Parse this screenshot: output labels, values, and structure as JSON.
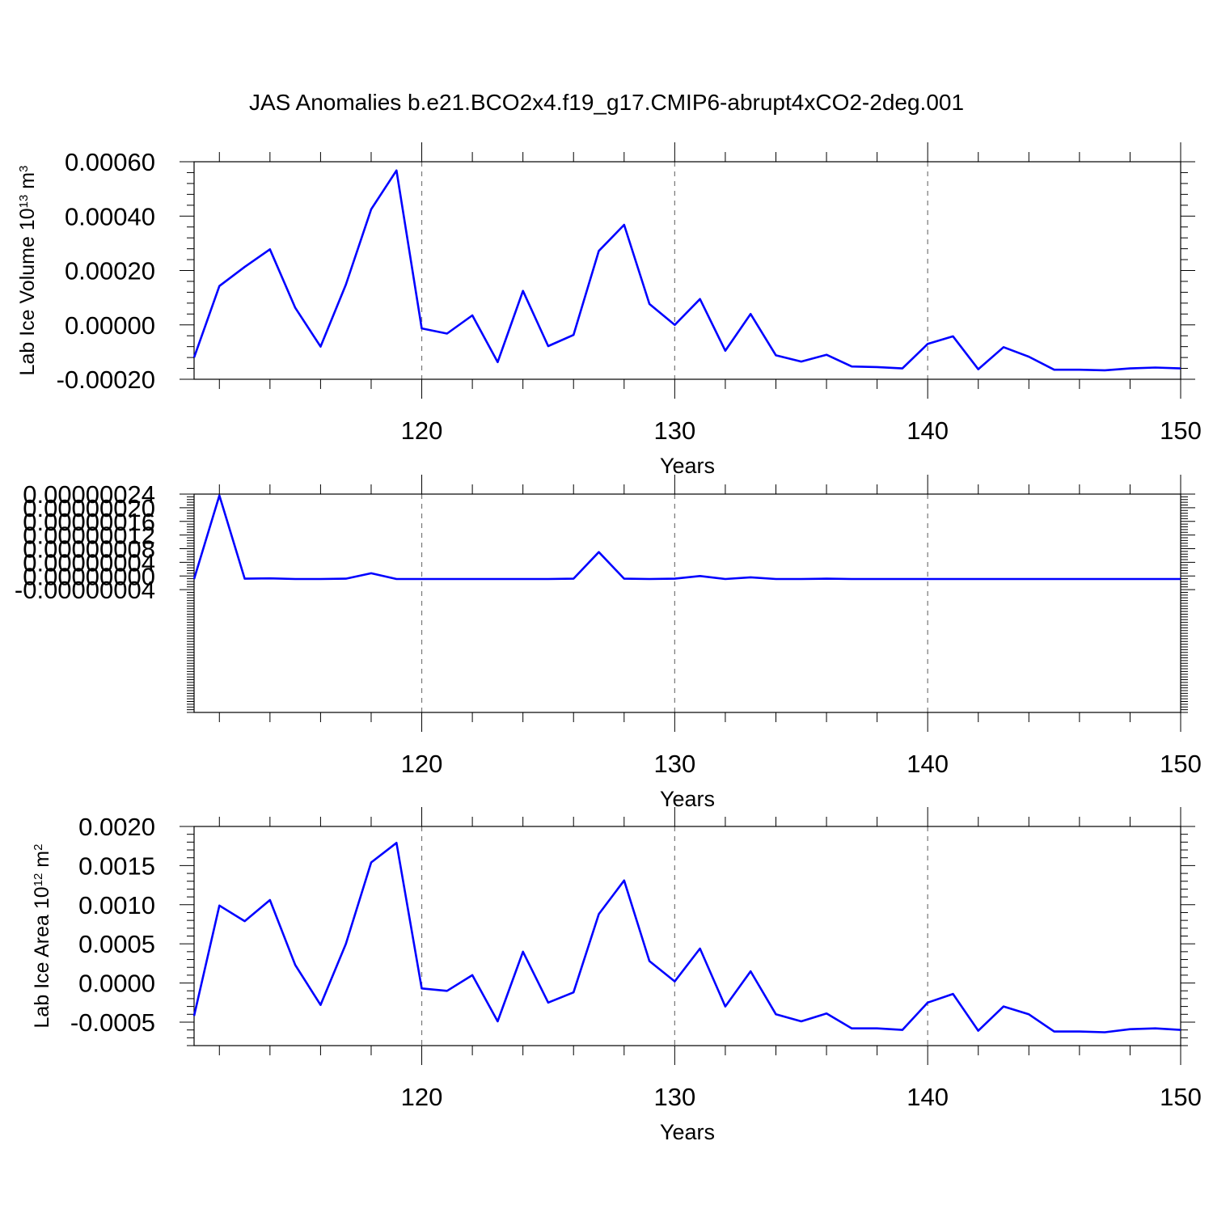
{
  "title": "JAS Anomalies b.e21.BCO2x4.f19_g17.CMIP6-abrupt4xCO2-2deg.001",
  "colors": {
    "line": "#0000ff",
    "grid": "#777777",
    "axis": "#000000"
  },
  "chart_data": [
    {
      "type": "line",
      "xlabel": "Years",
      "ylabel": {
        "prefix": "Lab Ice Volume 10",
        "exponent": "13",
        "unit": " m",
        "unit_exponent": "3"
      },
      "xlim": [
        111,
        150
      ],
      "ylim": [
        -0.0002,
        0.0006
      ],
      "x_major_ticks": [
        120,
        130,
        140,
        150
      ],
      "x_tick_labels": [
        "120",
        "130",
        "140",
        "150"
      ],
      "y_major_ticks": [
        -0.0002,
        0,
        0.0002,
        0.0004,
        0.0006
      ],
      "y_tick_labels": [
        "-0.00020",
        "0.00000",
        "0.00020",
        "0.00040",
        "0.00060"
      ],
      "grid": "vertical dashed at major x ticks",
      "x": [
        111,
        112,
        113,
        114,
        115,
        116,
        117,
        118,
        119,
        120,
        121,
        122,
        123,
        124,
        125,
        126,
        127,
        128,
        129,
        130,
        131,
        132,
        133,
        134,
        135,
        136,
        137,
        138,
        139,
        140,
        141,
        142,
        143,
        144,
        145,
        146,
        147,
        148,
        149,
        150
      ],
      "series": [
        {
          "values": [
            -0.00012,
            0.000143,
            0.000213,
            0.000278,
            6.3e-05,
            -8e-05,
            0.000148,
            0.000425,
            0.000568,
            -1.3e-05,
            -3.2e-05,
            3.5e-05,
            -0.000137,
            0.000125,
            -7.8e-05,
            -3.7e-05,
            0.000272,
            0.000368,
            7.7e-05,
            0.0,
            9.5e-05,
            -9.5e-05,
            4e-05,
            -0.000112,
            -0.000135,
            -0.00011,
            -0.000153,
            -0.000155,
            -0.00016,
            -7e-05,
            -4.2e-05,
            -0.000163,
            -8.2e-05,
            -0.000117,
            -0.000165,
            -0.000165,
            -0.000167,
            -0.00016,
            -0.000157,
            -0.00016
          ]
        }
      ]
    },
    {
      "type": "line",
      "xlabel": "Years",
      "ylabel": null,
      "xlim": [
        111,
        150
      ],
      "ylim": [
        -4e-07,
        2.4e-07
      ],
      "x_major_ticks": [
        120,
        130,
        140,
        150
      ],
      "x_tick_labels": [
        "120",
        "130",
        "140",
        "150"
      ],
      "y_major_ticks": [
        -4e-08,
        0,
        4e-08,
        8e-08,
        1.2e-07,
        1.6e-07,
        2e-07,
        2.4e-07
      ],
      "y_tick_labels": [
        "-0.00000004",
        "0.00000000",
        "0.00000004",
        "0.00000008",
        "0.00000012",
        "0.00000016",
        "0.00000020",
        "0.00000024"
      ],
      "grid": "vertical dashed at major x ticks",
      "x": [
        111,
        112,
        113,
        114,
        115,
        116,
        117,
        118,
        119,
        120,
        121,
        122,
        123,
        124,
        125,
        126,
        127,
        128,
        129,
        130,
        131,
        132,
        133,
        134,
        135,
        136,
        137,
        138,
        139,
        140,
        141,
        142,
        143,
        144,
        145,
        146,
        147,
        148,
        149,
        150
      ],
      "series": [
        {
          "values": [
            -9e-09,
            2.36e-07,
            -8e-09,
            -7e-09,
            -9e-09,
            -9e-09,
            -8e-09,
            8e-09,
            -9e-09,
            -9e-09,
            -9e-09,
            -9e-09,
            -9e-09,
            -9e-09,
            -9e-09,
            -8e-09,
            7e-08,
            -8e-09,
            -9e-09,
            -8e-09,
            0.0,
            -9e-09,
            -4e-09,
            -9e-09,
            -9e-09,
            -8e-09,
            -9e-09,
            -9e-09,
            -9e-09,
            -9e-09,
            -9e-09,
            -9e-09,
            -9e-09,
            -9e-09,
            -9e-09,
            -9e-09,
            -9e-09,
            -9e-09,
            -9e-09,
            -9e-09
          ]
        }
      ]
    },
    {
      "type": "line",
      "xlabel": "Years",
      "ylabel": {
        "prefix": "Lab Ice Area 10",
        "exponent": "12",
        "unit": " m",
        "unit_exponent": "2"
      },
      "xlim": [
        111,
        150
      ],
      "ylim": [
        -0.0008,
        0.002
      ],
      "x_major_ticks": [
        120,
        130,
        140,
        150
      ],
      "x_tick_labels": [
        "120",
        "130",
        "140",
        "150"
      ],
      "y_major_ticks": [
        -0.0005,
        0,
        0.0005,
        0.001,
        0.0015,
        0.002
      ],
      "y_tick_labels": [
        "-0.0005",
        "0.0000",
        "0.0005",
        "0.0010",
        "0.0015",
        "0.0020"
      ],
      "grid": "vertical dashed at major x ticks",
      "x": [
        111,
        112,
        113,
        114,
        115,
        116,
        117,
        118,
        119,
        120,
        121,
        122,
        123,
        124,
        125,
        126,
        127,
        128,
        129,
        130,
        131,
        132,
        133,
        134,
        135,
        136,
        137,
        138,
        139,
        140,
        141,
        142,
        143,
        144,
        145,
        146,
        147,
        148,
        149,
        150
      ],
      "series": [
        {
          "values": [
            -0.00042,
            0.00099,
            0.00079,
            0.00106,
            0.00023,
            -0.00028,
            0.0005,
            0.00154,
            0.00179,
            -7e-05,
            -0.0001,
            0.0001,
            -0.00049,
            0.0004,
            -0.00025,
            -0.00012,
            0.00088,
            0.00131,
            0.00028,
            2e-05,
            0.00044,
            -0.0003,
            0.00015,
            -0.0004,
            -0.00049,
            -0.00039,
            -0.00058,
            -0.00058,
            -0.0006,
            -0.00025,
            -0.00014,
            -0.00061,
            -0.0003,
            -0.0004,
            -0.00062,
            -0.00062,
            -0.00063,
            -0.00059,
            -0.00058,
            -0.0006
          ]
        }
      ]
    }
  ]
}
